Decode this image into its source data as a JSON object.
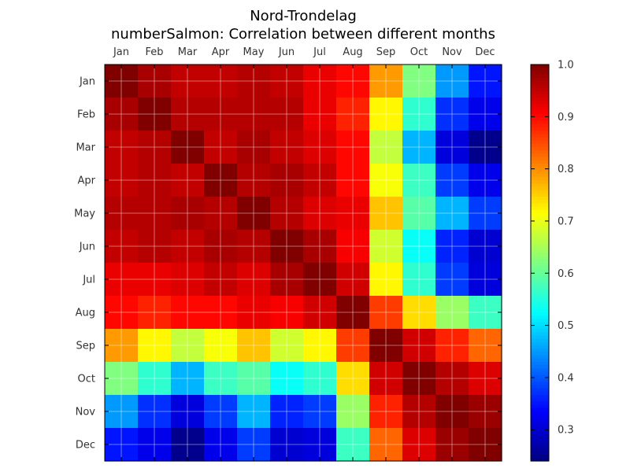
{
  "chart_data": {
    "type": "heatmap",
    "title": "Nord-Trondelag",
    "subtitle": "numberSalmon: Correlation between different months",
    "xlabel": "",
    "ylabel": "",
    "rows": [
      "Jan",
      "Feb",
      "Mar",
      "Apr",
      "May",
      "Jun",
      "Jul",
      "Aug",
      "Sep",
      "Oct",
      "Nov",
      "Dec"
    ],
    "cols": [
      "Jan",
      "Feb",
      "Mar",
      "Apr",
      "May",
      "Jun",
      "Jul",
      "Aug",
      "Sep",
      "Oct",
      "Nov",
      "Dec"
    ],
    "values": [
      [
        1.0,
        0.97,
        0.95,
        0.95,
        0.96,
        0.95,
        0.92,
        0.9,
        0.79,
        0.62,
        0.45,
        0.35
      ],
      [
        0.97,
        1.0,
        0.96,
        0.96,
        0.96,
        0.96,
        0.92,
        0.88,
        0.72,
        0.56,
        0.37,
        0.32
      ],
      [
        0.95,
        0.96,
        1.0,
        0.95,
        0.97,
        0.95,
        0.93,
        0.9,
        0.67,
        0.47,
        0.31,
        0.25
      ],
      [
        0.95,
        0.96,
        0.95,
        1.0,
        0.96,
        0.97,
        0.95,
        0.9,
        0.71,
        0.57,
        0.38,
        0.32
      ],
      [
        0.96,
        0.96,
        0.97,
        0.96,
        1.0,
        0.96,
        0.93,
        0.92,
        0.76,
        0.59,
        0.47,
        0.38
      ],
      [
        0.95,
        0.96,
        0.95,
        0.97,
        0.96,
        1.0,
        0.97,
        0.91,
        0.68,
        0.53,
        0.36,
        0.3
      ],
      [
        0.92,
        0.92,
        0.93,
        0.95,
        0.93,
        0.97,
        1.0,
        0.94,
        0.72,
        0.56,
        0.38,
        0.31
      ],
      [
        0.9,
        0.88,
        0.9,
        0.9,
        0.92,
        0.91,
        0.94,
        1.0,
        0.86,
        0.74,
        0.64,
        0.57
      ],
      [
        0.79,
        0.72,
        0.67,
        0.71,
        0.76,
        0.68,
        0.72,
        0.86,
        1.0,
        0.94,
        0.88,
        0.83
      ],
      [
        0.62,
        0.56,
        0.47,
        0.57,
        0.59,
        0.53,
        0.56,
        0.74,
        0.94,
        1.0,
        0.96,
        0.93
      ],
      [
        0.45,
        0.37,
        0.31,
        0.38,
        0.47,
        0.36,
        0.38,
        0.64,
        0.88,
        0.96,
        1.0,
        0.98
      ],
      [
        0.35,
        0.32,
        0.25,
        0.32,
        0.38,
        0.3,
        0.31,
        0.57,
        0.83,
        0.93,
        0.98,
        1.0
      ]
    ],
    "colorbar": {
      "min": 0.24,
      "max": 1.0,
      "ticks": [
        "0.3",
        "0.4",
        "0.5",
        "0.6",
        "0.7",
        "0.8",
        "0.9",
        "1.0"
      ],
      "colormap": "jet"
    },
    "grid": true,
    "x_tick_position": "top",
    "colorbar_position": "right"
  }
}
